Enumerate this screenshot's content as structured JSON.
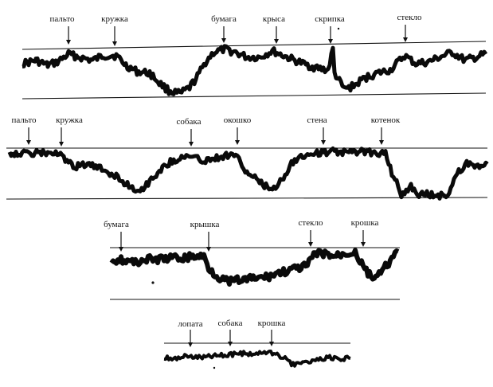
{
  "recordings": [
    {
      "id": "r1",
      "labels": [
        "пальто",
        "кружка",
        "бумага",
        "крыса",
        "скрипка",
        "стекло"
      ]
    },
    {
      "id": "r2",
      "labels": [
        "пальто",
        "кружка",
        "собака",
        "окошко",
        "стена",
        "котенок"
      ]
    },
    {
      "id": "r3",
      "labels": [
        "бумага",
        "крышка",
        "стекло",
        "крошка"
      ]
    },
    {
      "id": "r4",
      "labels": [
        "лопата",
        "собака",
        "крошка"
      ]
    }
  ]
}
